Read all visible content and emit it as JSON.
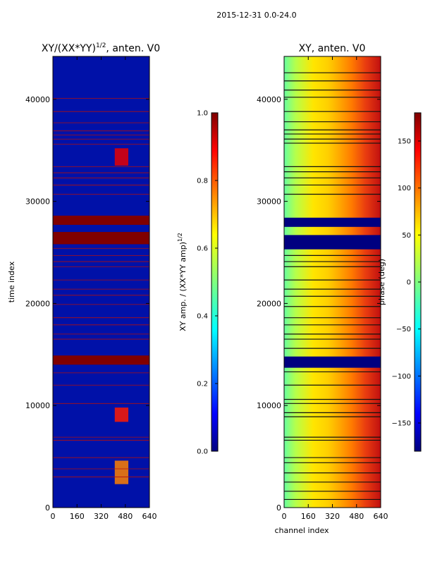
{
  "figure": {
    "suptitle": "2015-12-31 0.0-24.0"
  },
  "colors": {
    "jet_stops": [
      "#00007f",
      "#0000ff",
      "#007fff",
      "#00ffff",
      "#7fff7f",
      "#ffff00",
      "#ff7f00",
      "#ff0000",
      "#7f0000"
    ],
    "frame": "#000000",
    "background": "#ffffff"
  },
  "chart_data": [
    {
      "type": "heatmap",
      "id": "amp",
      "title_main": "XY/(XX*YY)",
      "title_exp": "1/2",
      "title_tail": ", anten. V0",
      "xlabel": "",
      "ylabel": "time index",
      "xlim": [
        0,
        640
      ],
      "ylim": [
        0,
        44200
      ],
      "xticks": [
        0,
        160,
        320,
        480,
        640
      ],
      "yticks": [
        0,
        10000,
        20000,
        30000,
        40000
      ],
      "bands": [
        {
          "from": 14000,
          "to": 14900,
          "value": 1.0
        },
        {
          "from": 25800,
          "to": 27000,
          "value": 1.0
        },
        {
          "from": 27700,
          "to": 28600,
          "value": 1.0
        }
      ],
      "thin_lines": [
        3000,
        3800,
        4900,
        6600,
        6900,
        10200,
        12000,
        13200,
        16500,
        17000,
        17900,
        18600,
        19900,
        20800,
        21400,
        22300,
        23600,
        24100,
        24700,
        25400,
        30700,
        31600,
        32300,
        32800,
        33400,
        35600,
        36100,
        36500,
        36900,
        37700,
        38800,
        40100
      ],
      "hotspots": [
        {
          "y_from": 33500,
          "y_to": 35200,
          "x_from": 410,
          "x_to": 500,
          "value": 0.9
        },
        {
          "y_from": 8400,
          "y_to": 9800,
          "x_from": 410,
          "x_to": 500,
          "value": 0.85
        },
        {
          "y_from": 2300,
          "y_to": 4600,
          "x_from": 410,
          "x_to": 500,
          "value": 0.75
        }
      ],
      "colorbar": {
        "label_main": "XY amp. / (XX*YY amp)",
        "label_exp": "1/2",
        "ticks": [
          0.0,
          0.2,
          0.4,
          0.6,
          0.8,
          1.0
        ],
        "tick_labels": [
          "0.0",
          "0.2",
          "0.4",
          "0.6",
          "0.8",
          "1.0"
        ],
        "range": [
          0,
          1
        ]
      }
    },
    {
      "type": "heatmap",
      "id": "phase",
      "title_main": "XY, anten. V0",
      "xlabel": "channel index",
      "ylabel": "",
      "xlim": [
        0,
        640
      ],
      "ylim": [
        0,
        44200
      ],
      "xticks": [
        0,
        160,
        320,
        480,
        640
      ],
      "yticks": [
        0,
        10000,
        20000,
        30000,
        40000
      ],
      "bands": [
        {
          "from": 13700,
          "to": 14800,
          "value": -180
        },
        {
          "from": 25300,
          "to": 26700,
          "value": -180
        },
        {
          "from": 27500,
          "to": 28400,
          "value": -180
        }
      ],
      "thin_lines": [
        800,
        1600,
        2500,
        3400,
        4400,
        4900,
        6600,
        6900,
        8900,
        9300,
        10200,
        10600,
        12000,
        13300,
        15600,
        16500,
        17000,
        17900,
        18600,
        19700,
        20700,
        21400,
        22300,
        23600,
        24100,
        24700,
        25400,
        30700,
        31600,
        32300,
        32900,
        33400,
        35700,
        36100,
        36600,
        37000,
        37800,
        38800,
        40200,
        40900,
        41800,
        42600
      ],
      "colorbar": {
        "label_main": "phase (deg)",
        "ticks": [
          -150,
          -100,
          -50,
          0,
          50,
          100,
          150
        ],
        "tick_labels": [
          "−150",
          "−100",
          "−50",
          "0",
          "50",
          "100",
          "150"
        ],
        "range": [
          -180,
          180
        ]
      }
    }
  ]
}
